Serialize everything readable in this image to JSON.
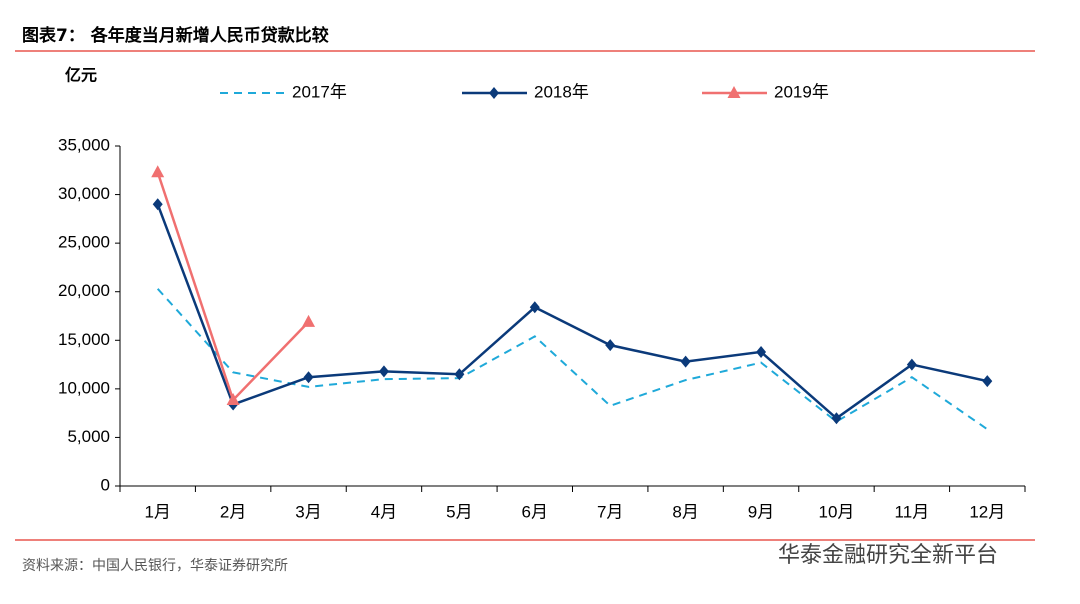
{
  "chart_data": {
    "type": "line",
    "title": "图表7：  各年度当月新增人民币贷款比较",
    "y_label": "亿元",
    "source": "资料来源：中国人民银行，华泰证券研究所",
    "watermark": "华泰金融研究全新平台",
    "categories": [
      "1月",
      "2月",
      "3月",
      "4月",
      "5月",
      "6月",
      "7月",
      "8月",
      "9月",
      "10月",
      "11月",
      "12月"
    ],
    "series": [
      {
        "name": "2017年",
        "color": "#1fa9d9",
        "style": "dashed",
        "marker": "none",
        "values": [
          20300,
          11700,
          10200,
          11000,
          11100,
          15400,
          8255,
          10900,
          12700,
          6632,
          11200,
          5844
        ]
      },
      {
        "name": "2018年",
        "color": "#0b3a7a",
        "style": "solid",
        "marker": "diamond",
        "values": [
          29000,
          8393,
          11200,
          11800,
          11500,
          18400,
          14500,
          12800,
          13800,
          6970,
          12500,
          10800
        ]
      },
      {
        "name": "2019年",
        "color": "#f07070",
        "style": "solid",
        "marker": "triangle",
        "values": [
          32300,
          8858,
          16900,
          null,
          null,
          null,
          null,
          null,
          null,
          null,
          null,
          null
        ]
      }
    ],
    "ylim": [
      0,
      35000
    ],
    "yticks": [
      0,
      {
        "value": 5000,
        "label": "5,000"
      },
      {
        "value": 10000,
        "label": "10,000"
      },
      {
        "value": 15000,
        "label": "15,000"
      },
      {
        "value": 20000,
        "label": "20,000"
      },
      {
        "value": 25000,
        "label": "25,000"
      },
      {
        "value": 30000,
        "label": "30,000"
      },
      {
        "value": 35000,
        "label": "35,000"
      }
    ],
    "grid": false,
    "legend": "top"
  }
}
